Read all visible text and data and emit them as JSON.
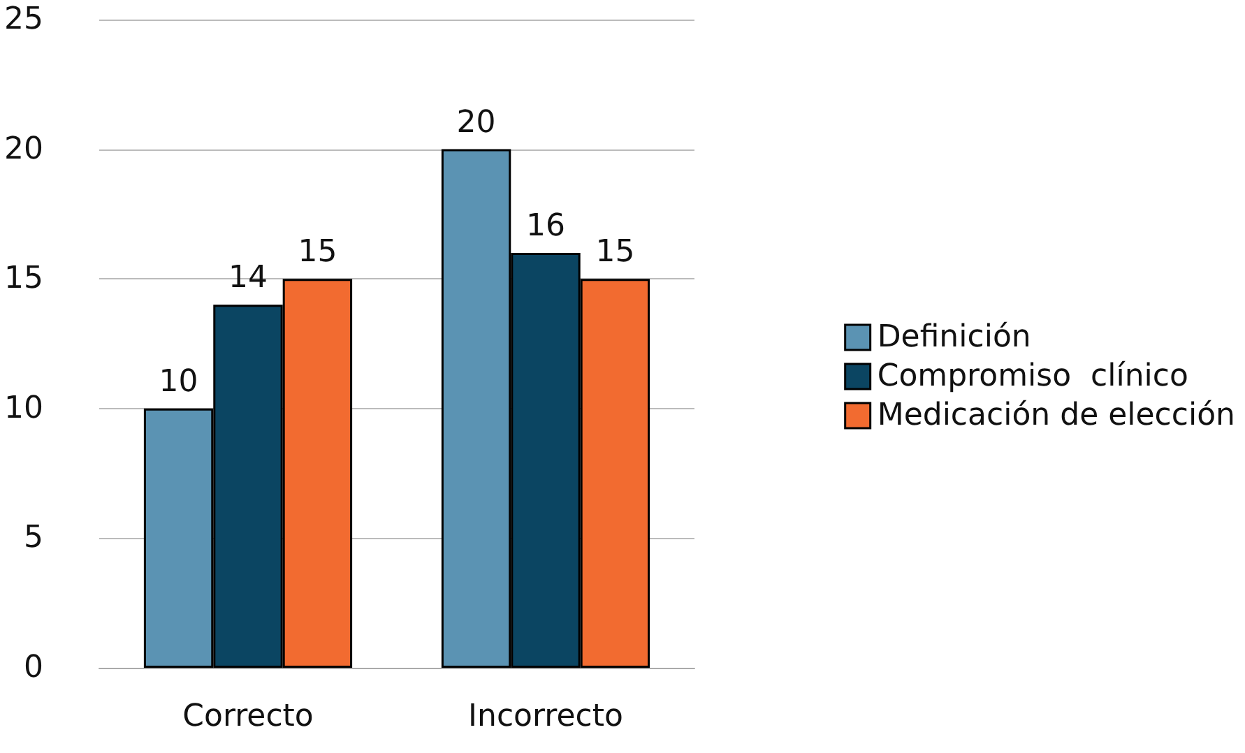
{
  "chart_data": {
    "type": "bar",
    "categories": [
      "Correcto",
      "Incorrecto"
    ],
    "series": [
      {
        "name": "Definición",
        "color": "#5b93b3",
        "values": [
          10,
          20
        ]
      },
      {
        "name": "Compromiso  clínico",
        "color": "#0b4562",
        "values": [
          14,
          16
        ]
      },
      {
        "name": "Medicación de elección",
        "color": "#f26b30",
        "values": [
          15,
          15
        ]
      }
    ],
    "ylim": [
      0,
      25
    ],
    "yticks": [
      0,
      5,
      10,
      15,
      20,
      25
    ],
    "grid": "y",
    "legend": "right",
    "data_labels": true
  }
}
